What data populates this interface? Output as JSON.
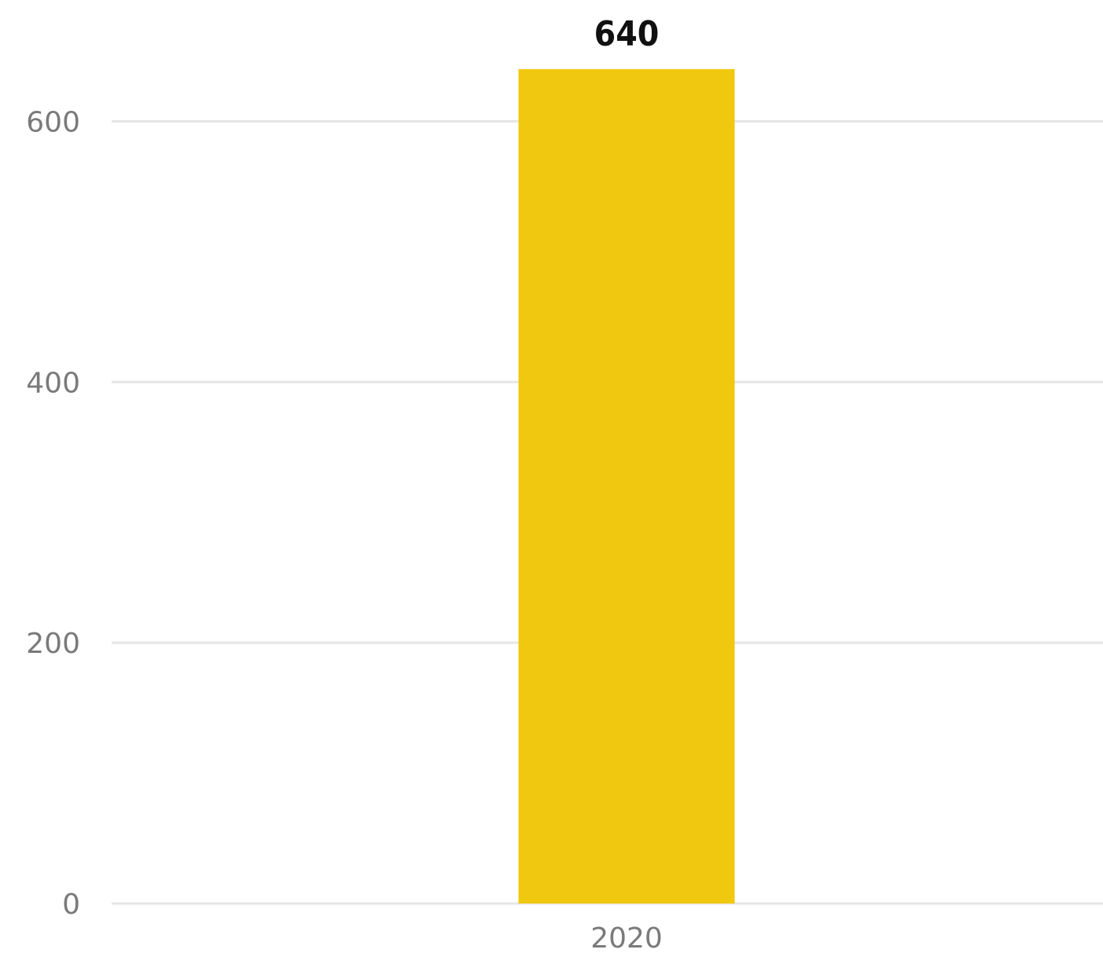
{
  "chart_data": {
    "type": "bar",
    "categories": [
      "2020"
    ],
    "values": [
      640
    ],
    "data_labels": [
      "640"
    ],
    "title": "",
    "xlabel": "",
    "ylabel": "",
    "ylim": [
      0,
      640
    ],
    "yticks": [
      0,
      200,
      400,
      600
    ],
    "ytick_labels": [
      "0",
      "200",
      "400",
      "600"
    ],
    "grid": true,
    "legend": "none",
    "colors": {
      "bar": "#f0c80f",
      "grid": "#e5e5e5",
      "tick_text": "#7a7a7a",
      "data_label_text": "#111111"
    }
  }
}
